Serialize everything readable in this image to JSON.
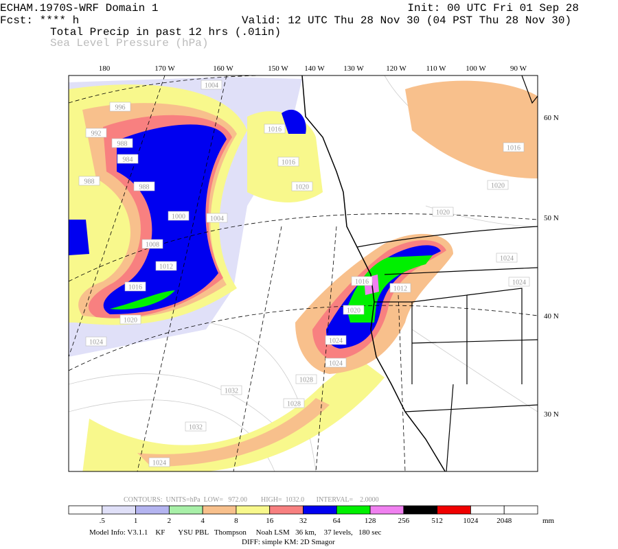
{
  "header": {
    "model": "ECHAM.1970S-WRF Domain 1",
    "init": "Init: 00 UTC Fri 01 Sep 28",
    "fcst": "Fcst: **** h",
    "valid": "Valid: 12 UTC Thu 28 Nov 30 (04 PST Thu 28 Nov 30)",
    "field1": "Total Precip in past 12 hrs (.01in)",
    "field2": "Sea Level Pressure (hPa)"
  },
  "map": {
    "lon_labels": [
      "180",
      "170 W",
      "160 W",
      "150 W",
      "140 W",
      "130 W",
      "120 W",
      "110 W",
      "100 W",
      "90 W"
    ],
    "lat_labels": [
      "60 N",
      "50 N",
      "40 N",
      "30 N"
    ],
    "contour_labels": [
      "1004",
      "996",
      "992",
      "988",
      "984",
      "988",
      "988",
      "1000",
      "1004",
      "1008",
      "1012",
      "1016",
      "1020",
      "1024",
      "1016",
      "1016",
      "1020",
      "1020",
      "1020",
      "1024",
      "1016",
      "1024",
      "1012",
      "1016",
      "1020",
      "1024",
      "1024",
      "1028",
      "1032",
      "1028",
      "1032",
      "1024"
    ]
  },
  "contour_info": "CONTOURS:  UNITS=hPa  LOW=   972.00        HIGH=  1032.0       INTERVAL=    2.0000",
  "colorbar": {
    "colors": [
      "#ffffff",
      "#e0e0f8",
      "#b4b4f0",
      "#a8f0a8",
      "#f8c08c",
      "#f8f88c",
      "#f88080",
      "#0000f0",
      "#00f000",
      "#f080f0",
      "#000000",
      "#f00000",
      "#ffffff",
      "#ffffff"
    ],
    "labels": [
      ".5",
      "1",
      "2",
      "4",
      "8",
      "16",
      "32",
      "64",
      "128",
      "256",
      "512",
      "1024",
      "2048"
    ],
    "unit": "mm"
  },
  "footer": {
    "line1": "Model Info: V3.1.1    KF       YSU PBL   Thompson     Noah LSM   36 km,    37 levels,   180 sec",
    "line2": "DIFF: simple KM: 2D Smagor"
  }
}
